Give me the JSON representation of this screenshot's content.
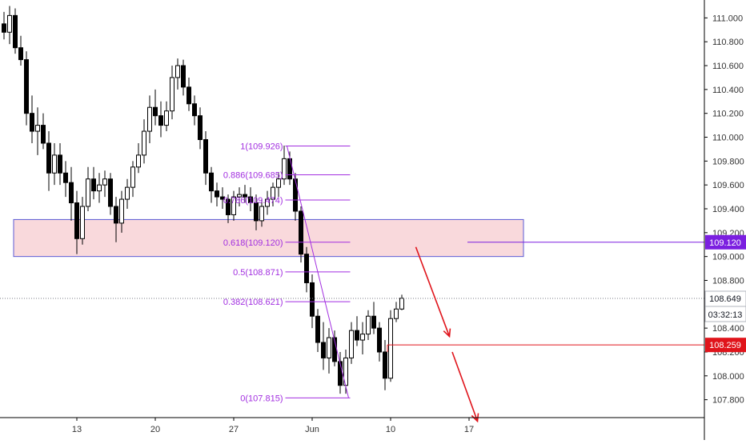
{
  "chart_data": {
    "type": "candlestick",
    "ylim": [
      107.65,
      111.15
    ],
    "price_ticks": [
      "111.000",
      "110.800",
      "110.600",
      "110.400",
      "110.200",
      "110.000",
      "109.800",
      "109.600",
      "109.400",
      "109.200",
      "109.000",
      "108.800",
      "108.600",
      "108.400",
      "108.200",
      "108.000",
      "107.800"
    ],
    "date_ticks": [
      {
        "label": "13",
        "bar": 13
      },
      {
        "label": "20",
        "bar": 27
      },
      {
        "label": "27",
        "bar": 41
      },
      {
        "label": "Jun",
        "bar": 55
      },
      {
        "label": "10",
        "bar": 69
      },
      {
        "label": "17",
        "bar": 83
      }
    ],
    "current_price": {
      "value": 108.649,
      "label": "108.649",
      "countdown": "03:32:13",
      "color": "#787b86"
    },
    "zone_price": {
      "value": 109.12,
      "label": "109.120",
      "color": "#7b1fe0"
    },
    "target_price": {
      "value": 108.259,
      "label": "108.259",
      "color": "#e0141b"
    },
    "supply_zone": {
      "top": 109.31,
      "bottom": 109.0,
      "from_bar": 0,
      "to_bar": 94,
      "fill": "#f9d9dc",
      "border": "#5b5bd6"
    },
    "fibonacci": {
      "high": 109.926,
      "low": 107.815,
      "anchor_high_bar": 50.5,
      "anchor_low_bar": 61.5,
      "color": "#a22ee0",
      "levels": [
        {
          "label": "1(109.926)",
          "value": 109.926
        },
        {
          "label": "0.886(109.685)",
          "value": 109.685
        },
        {
          "label": "0.786(109.474)",
          "value": 109.474
        },
        {
          "label": "0.618(109.120)",
          "value": 109.12
        },
        {
          "label": "0.5(108.871)",
          "value": 108.871
        },
        {
          "label": "0.382(108.621)",
          "value": 108.621
        },
        {
          "label": "0(107.815)",
          "value": 107.815
        }
      ]
    },
    "arrows": [
      {
        "from": [
          73.5,
          109.08
        ],
        "to": [
          79.5,
          108.33
        ]
      },
      {
        "from": [
          80,
          108.2
        ],
        "to": [
          84.5,
          107.62
        ]
      }
    ],
    "candles": [
      [
        110.95,
        111.05,
        110.82,
        110.88
      ],
      [
        110.88,
        111.1,
        110.78,
        111.02
      ],
      [
        111.02,
        111.08,
        110.7,
        110.75
      ],
      [
        110.75,
        110.85,
        110.6,
        110.65
      ],
      [
        110.65,
        110.72,
        110.1,
        110.2
      ],
      [
        110.2,
        110.35,
        109.95,
        110.05
      ],
      [
        110.05,
        110.25,
        109.85,
        110.1
      ],
      [
        110.1,
        110.2,
        109.9,
        109.95
      ],
      [
        109.95,
        110.05,
        109.55,
        109.7
      ],
      [
        109.7,
        109.95,
        109.6,
        109.85
      ],
      [
        109.85,
        109.95,
        109.6,
        109.7
      ],
      [
        109.7,
        109.8,
        109.5,
        109.62
      ],
      [
        109.62,
        109.75,
        109.3,
        109.45
      ],
      [
        109.45,
        109.55,
        109.02,
        109.15
      ],
      [
        109.15,
        109.5,
        109.1,
        109.42
      ],
      [
        109.42,
        109.75,
        109.38,
        109.65
      ],
      [
        109.65,
        109.75,
        109.48,
        109.55
      ],
      [
        109.55,
        109.7,
        109.45,
        109.6
      ],
      [
        109.6,
        109.72,
        109.5,
        109.65
      ],
      [
        109.65,
        109.7,
        109.35,
        109.42
      ],
      [
        109.42,
        109.5,
        109.12,
        109.28
      ],
      [
        109.28,
        109.55,
        109.2,
        109.48
      ],
      [
        109.48,
        109.65,
        109.4,
        109.58
      ],
      [
        109.58,
        109.8,
        109.5,
        109.75
      ],
      [
        109.75,
        109.95,
        109.7,
        109.85
      ],
      [
        109.85,
        110.15,
        109.78,
        110.05
      ],
      [
        110.05,
        110.35,
        109.95,
        110.25
      ],
      [
        110.25,
        110.4,
        110.1,
        110.18
      ],
      [
        110.18,
        110.3,
        110.0,
        110.1
      ],
      [
        110.1,
        110.3,
        110.05,
        110.22
      ],
      [
        110.22,
        110.6,
        110.15,
        110.5
      ],
      [
        110.5,
        110.66,
        110.4,
        110.6
      ],
      [
        110.6,
        110.65,
        110.35,
        110.42
      ],
      [
        110.42,
        110.5,
        110.22,
        110.28
      ],
      [
        110.28,
        110.35,
        110.1,
        110.18
      ],
      [
        110.18,
        110.25,
        109.9,
        109.98
      ],
      [
        109.98,
        110.05,
        109.6,
        109.7
      ],
      [
        109.7,
        109.75,
        109.45,
        109.55
      ],
      [
        109.55,
        109.62,
        109.42,
        109.5
      ],
      [
        109.5,
        109.58,
        109.4,
        109.48
      ],
      [
        109.48,
        109.52,
        109.28,
        109.35
      ],
      [
        109.35,
        109.55,
        109.3,
        109.5
      ],
      [
        109.5,
        109.58,
        109.42,
        109.52
      ],
      [
        109.52,
        109.6,
        109.45,
        109.5
      ],
      [
        109.5,
        109.58,
        109.38,
        109.45
      ],
      [
        109.45,
        109.52,
        109.22,
        109.3
      ],
      [
        109.3,
        109.48,
        109.25,
        109.42
      ],
      [
        109.42,
        109.55,
        109.35,
        109.48
      ],
      [
        109.48,
        109.62,
        109.42,
        109.58
      ],
      [
        109.58,
        109.7,
        109.5,
        109.65
      ],
      [
        109.65,
        109.93,
        109.6,
        109.82
      ],
      [
        109.82,
        109.88,
        109.6,
        109.65
      ],
      [
        109.65,
        109.7,
        109.3,
        109.38
      ],
      [
        109.38,
        109.42,
        108.95,
        109.02
      ],
      [
        109.02,
        109.08,
        108.7,
        108.78
      ],
      [
        108.78,
        108.85,
        108.4,
        108.5
      ],
      [
        108.5,
        108.56,
        108.2,
        108.28
      ],
      [
        108.28,
        108.45,
        108.05,
        108.15
      ],
      [
        108.15,
        108.4,
        108.02,
        108.32
      ],
      [
        108.32,
        108.38,
        108.08,
        108.12
      ],
      [
        108.12,
        108.2,
        107.85,
        107.92
      ],
      [
        107.92,
        108.22,
        107.85,
        108.15
      ],
      [
        108.15,
        108.45,
        108.1,
        108.38
      ],
      [
        108.38,
        108.5,
        108.25,
        108.3
      ],
      [
        108.3,
        108.45,
        108.18,
        108.35
      ],
      [
        108.35,
        108.55,
        108.3,
        108.5
      ],
      [
        108.5,
        108.62,
        108.35,
        108.4
      ],
      [
        108.4,
        108.45,
        108.12,
        108.2
      ],
      [
        108.2,
        108.3,
        107.88,
        107.98
      ],
      [
        107.98,
        108.55,
        107.95,
        108.48
      ],
      [
        108.48,
        108.62,
        108.45,
        108.56
      ],
      [
        108.56,
        108.68,
        108.55,
        108.65
      ]
    ]
  }
}
